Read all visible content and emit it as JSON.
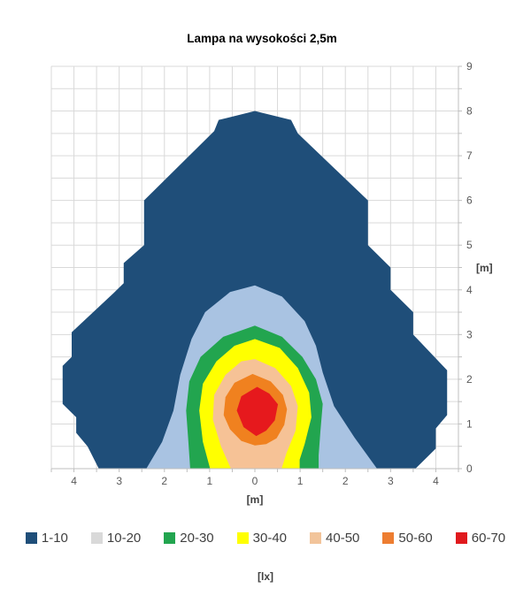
{
  "title": "Lampa na wysokości 2,5m",
  "axes": {
    "x": {
      "min": -4.5,
      "max": 4.5,
      "grid_step": 0.5,
      "unit_label": "[m]",
      "ticks": [
        {
          "v": -4,
          "label": "4"
        },
        {
          "v": -3,
          "label": "3"
        },
        {
          "v": -2,
          "label": "2"
        },
        {
          "v": -1,
          "label": "1"
        },
        {
          "v": 0,
          "label": "0"
        },
        {
          "v": 1,
          "label": "1"
        },
        {
          "v": 2,
          "label": "2"
        },
        {
          "v": 3,
          "label": "3"
        },
        {
          "v": 4,
          "label": "4"
        }
      ]
    },
    "y": {
      "min": 0,
      "max": 9,
      "grid_step": 0.5,
      "unit_label": "[m]",
      "side": "right",
      "ticks": [
        {
          "v": 0,
          "label": "0"
        },
        {
          "v": 1,
          "label": "1"
        },
        {
          "v": 2,
          "label": "2"
        },
        {
          "v": 3,
          "label": "3"
        },
        {
          "v": 4,
          "label": "4"
        },
        {
          "v": 5,
          "label": "5"
        },
        {
          "v": 6,
          "label": "6"
        },
        {
          "v": 7,
          "label": "7"
        },
        {
          "v": 8,
          "label": "8"
        },
        {
          "v": 9,
          "label": "9"
        }
      ]
    }
  },
  "legend": {
    "unit_label": "[lx]",
    "items": [
      {
        "label": "1-10",
        "swatch_color": "#1f4e79"
      },
      {
        "label": "10-20",
        "swatch_color": "#d9d9d9"
      },
      {
        "label": "20-30",
        "swatch_color": "#22a54f"
      },
      {
        "label": "30-40",
        "swatch_color": "#ffff00"
      },
      {
        "label": "40-50",
        "swatch_color": "#f2c49a"
      },
      {
        "label": "50-60",
        "swatch_color": "#ed7d31"
      },
      {
        "label": "60-70",
        "swatch_color": "#e0191d"
      }
    ]
  },
  "chart_data": {
    "type": "area",
    "subtype": "filled-contour-isolux",
    "title": "Lampa na wysokości 2,5m",
    "xlabel": "[m]",
    "ylabel": "[m]",
    "value_unit": "[lx]",
    "xlim": [
      -4.5,
      4.5
    ],
    "ylim": [
      0,
      9
    ],
    "grid": true,
    "grid_color": "#d9d9d9",
    "axis_color": "#bfbfbf",
    "legend_position": "bottom",
    "bands": [
      {
        "range_lx": "1-10",
        "color": "#1f4e79",
        "polygon": [
          [
            -3.45,
            0
          ],
          [
            -3.7,
            0.5
          ],
          [
            -3.95,
            0.8
          ],
          [
            -3.95,
            1.15
          ],
          [
            -4.25,
            1.45
          ],
          [
            -4.25,
            2.3
          ],
          [
            -4.05,
            2.5
          ],
          [
            -4.05,
            3.05
          ],
          [
            -3.1,
            3.95
          ],
          [
            -2.9,
            4.15
          ],
          [
            -2.9,
            4.6
          ],
          [
            -2.45,
            5.0
          ],
          [
            -2.45,
            6.0
          ],
          [
            -0.9,
            7.55
          ],
          [
            -0.8,
            7.8
          ],
          [
            0,
            8.0
          ],
          [
            0.8,
            7.8
          ],
          [
            0.95,
            7.5
          ],
          [
            2.5,
            6.0
          ],
          [
            2.5,
            5.0
          ],
          [
            3.0,
            4.5
          ],
          [
            3.0,
            4.0
          ],
          [
            3.5,
            3.5
          ],
          [
            3.5,
            3.0
          ],
          [
            4.25,
            2.2
          ],
          [
            4.25,
            1.2
          ],
          [
            4.0,
            0.9
          ],
          [
            4.0,
            0.45
          ],
          [
            3.55,
            0
          ]
        ]
      },
      {
        "range_lx": "10-20",
        "color": "#a9c3e2",
        "polygon": [
          [
            -2.4,
            0
          ],
          [
            -2.05,
            0.6
          ],
          [
            -1.8,
            1.3
          ],
          [
            -1.65,
            2.1
          ],
          [
            -1.4,
            2.9
          ],
          [
            -1.1,
            3.5
          ],
          [
            -0.55,
            3.95
          ],
          [
            0,
            4.1
          ],
          [
            0.6,
            3.85
          ],
          [
            1.1,
            3.3
          ],
          [
            1.35,
            2.75
          ],
          [
            1.5,
            2.15
          ],
          [
            1.75,
            1.4
          ],
          [
            2.2,
            0.7
          ],
          [
            2.7,
            0
          ]
        ]
      },
      {
        "range_lx": "20-30",
        "color": "#22a54f",
        "polygon": [
          [
            -1.43,
            0
          ],
          [
            -1.47,
            0.6
          ],
          [
            -1.52,
            1.3
          ],
          [
            -1.45,
            1.95
          ],
          [
            -1.2,
            2.5
          ],
          [
            -0.7,
            2.95
          ],
          [
            0,
            3.2
          ],
          [
            0.6,
            2.95
          ],
          [
            1.05,
            2.5
          ],
          [
            1.35,
            2.0
          ],
          [
            1.5,
            1.45
          ],
          [
            1.45,
            0.85
          ],
          [
            1.41,
            0.3
          ],
          [
            1.41,
            0
          ]
        ]
      },
      {
        "range_lx": "30-40",
        "color": "#ffff00",
        "polygon": [
          [
            -0.99,
            0
          ],
          [
            -1.15,
            0.6
          ],
          [
            -1.23,
            1.3
          ],
          [
            -1.15,
            1.9
          ],
          [
            -0.85,
            2.4
          ],
          [
            -0.45,
            2.75
          ],
          [
            0,
            2.9
          ],
          [
            0.55,
            2.7
          ],
          [
            0.95,
            2.25
          ],
          [
            1.2,
            1.7
          ],
          [
            1.25,
            1.15
          ],
          [
            1.1,
            0.55
          ],
          [
            0.99,
            0.2
          ],
          [
            0.99,
            0
          ]
        ]
      },
      {
        "range_lx": "40-50",
        "color": "#f6c296",
        "polygon": [
          [
            -0.53,
            0
          ],
          [
            -0.75,
            0.5
          ],
          [
            -0.93,
            1.1
          ],
          [
            -0.9,
            1.65
          ],
          [
            -0.65,
            2.1
          ],
          [
            -0.3,
            2.4
          ],
          [
            0,
            2.45
          ],
          [
            0.45,
            2.25
          ],
          [
            0.8,
            1.85
          ],
          [
            0.95,
            1.4
          ],
          [
            0.9,
            0.85
          ],
          [
            0.7,
            0.35
          ],
          [
            0.59,
            0
          ]
        ]
      },
      {
        "range_lx": "50-60",
        "color": "#f0811f",
        "polygon": [
          [
            0,
            0.52
          ],
          [
            -0.3,
            0.62
          ],
          [
            -0.55,
            0.88
          ],
          [
            -0.69,
            1.2
          ],
          [
            -0.65,
            1.6
          ],
          [
            -0.45,
            1.92
          ],
          [
            -0.05,
            2.12
          ],
          [
            0.35,
            1.95
          ],
          [
            0.62,
            1.65
          ],
          [
            0.71,
            1.33
          ],
          [
            0.65,
            0.98
          ],
          [
            0.48,
            0.68
          ],
          [
            0.25,
            0.55
          ]
        ]
      },
      {
        "range_lx": "60-70",
        "color": "#e6191d",
        "polygon": [
          [
            0.03,
            0.73
          ],
          [
            -0.25,
            0.93
          ],
          [
            -0.4,
            1.3
          ],
          [
            -0.3,
            1.62
          ],
          [
            0.05,
            1.83
          ],
          [
            0.32,
            1.68
          ],
          [
            0.51,
            1.44
          ],
          [
            0.44,
            1.08
          ],
          [
            0.25,
            0.85
          ]
        ]
      }
    ]
  }
}
